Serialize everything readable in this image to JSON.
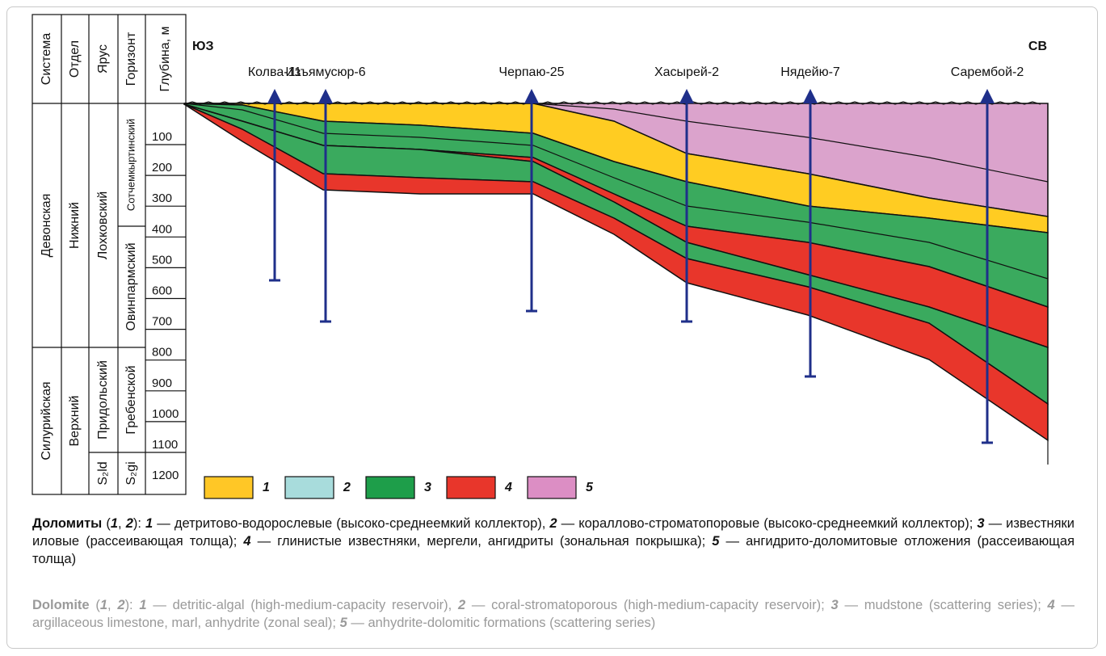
{
  "column_headers": [
    "Система",
    "Отдел",
    "Ярус",
    "Горизонт",
    "Глубина, м"
  ],
  "system": [
    "Девонская",
    "Силурийская"
  ],
  "series": [
    "Нижний",
    "Верхний"
  ],
  "stage": [
    "Лохковский",
    "Придольский",
    "S₂ld"
  ],
  "horizon": [
    "Сотчемкыртинский",
    "Овинпармский",
    "Гребенской",
    "S₂gi"
  ],
  "depths": [
    100,
    200,
    300,
    400,
    500,
    600,
    700,
    800,
    900,
    1000,
    1100,
    1200
  ],
  "directions": [
    "ЮЗ",
    "СВ"
  ],
  "wells": [
    "Колва-11",
    "Изъямусюр-6",
    "Черпаю-25",
    "Хасырей-2",
    "Нядейю-7",
    "Сарембой-2"
  ],
  "legend": [
    "1",
    "2",
    "3",
    "4",
    "5"
  ],
  "caption_ru": [
    "Доломиты",
    " (",
    "1",
    ", ",
    "2",
    "): ",
    "1",
    " — детритово-водорослевые (высоко-среднеемкий коллектор), ",
    "2",
    " — кораллово-строматопоровые (высоко-среднеемкий коллектор); ",
    "3",
    " — известняки иловые (рассеивающая толща); ",
    "4",
    " — глинистые известняки, мергели, ангидриты (зональная покрышка); ",
    "5",
    " — ангидрито-доломитовые отложения (рассеивающая толща)"
  ],
  "caption_en": [
    "Dolomite",
    " (",
    "1",
    ", ",
    "2",
    "): ",
    "1",
    " — detritic-algal (high-medium-capacity reservoir), ",
    "2",
    " — coral-stromatoporous (high-medium-capacity reservoir); ",
    "3",
    " — mudstone (scattering series); ",
    "4",
    " — argillaceous limestone, marl, anhydrite (zonal seal); ",
    "5",
    " — anhydrite-dolomitic formations (scattering series)"
  ]
}
